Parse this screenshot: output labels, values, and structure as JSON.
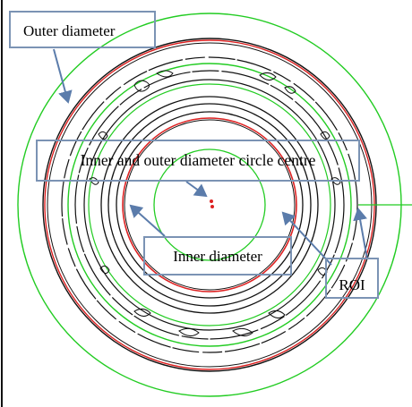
{
  "labels": {
    "outer_diameter": "Outer diameter",
    "circle_centre": "Inner and outer diameter circle centre",
    "inner_diameter": "Inner diameter",
    "roi": "ROI"
  },
  "colors": {
    "roi_circle": "#22cc22",
    "fit_circle": "#dd2222",
    "edge": "#000000",
    "label_border": "#7b93b4",
    "arrow": "#5b7cab"
  }
}
